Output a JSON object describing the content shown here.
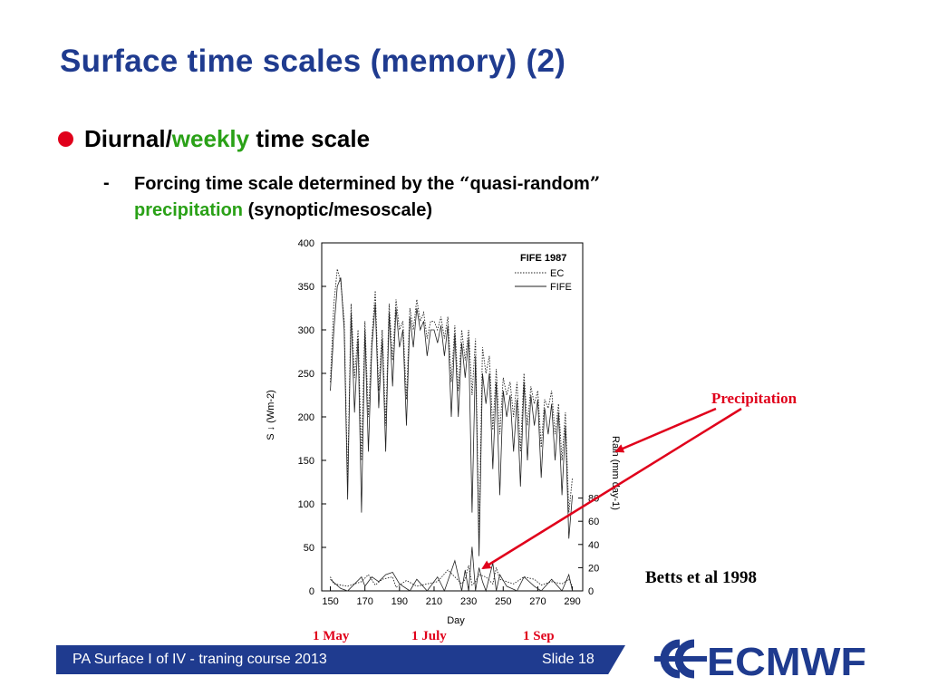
{
  "slide": {
    "title": "Surface time scales (memory) (2)",
    "bullet": {
      "part1": "Diurnal/",
      "part2": "weekly",
      "part3": " time scale"
    },
    "sub": {
      "dash": "-",
      "line1_prefix": "Forcing time scale determined by the ",
      "open_quote": "“",
      "line1_quoted": "quasi-random",
      "close_quote": "”",
      "line2_green": "precipitation",
      "line2_rest": " (synoptic/mesoscale)"
    },
    "annotation_label": "Precipitation",
    "citation": "Betts et al 1998",
    "months": [
      "1 May",
      "1 July",
      "1 Sep"
    ],
    "footer": {
      "left": "PA Surface I of IV - traning course 2013",
      "right": "Slide 18"
    },
    "logo_text": "ECMWF",
    "colors": {
      "title_blue": "#1f3b8f",
      "accent_red": "#e0001b",
      "accent_green": "#2aa117"
    }
  },
  "chart_data": {
    "type": "line",
    "title": "FIFE 1987",
    "xlabel": "Day",
    "ylabel": "S ↓ (Wm-2)",
    "y2label": "Rain (mm day-1)",
    "xlim": [
      145,
      296
    ],
    "ylim": [
      0,
      400
    ],
    "y2lim": [
      0,
      300
    ],
    "xticks": [
      150,
      170,
      190,
      210,
      230,
      250,
      270,
      290
    ],
    "yticks": [
      0,
      50,
      100,
      150,
      200,
      250,
      300,
      350,
      400
    ],
    "y2ticks": [
      0,
      20,
      40,
      60,
      80
    ],
    "grid": false,
    "legend": [
      "EC",
      "FIFE"
    ],
    "legend_position": "top-right",
    "series": [
      {
        "name": "EC",
        "axis": "left",
        "style": "dotted",
        "x": [
          150,
          152,
          154,
          156,
          158,
          160,
          162,
          164,
          166,
          168,
          170,
          172,
          174,
          176,
          178,
          180,
          182,
          184,
          186,
          188,
          190,
          192,
          194,
          196,
          198,
          200,
          202,
          204,
          206,
          208,
          210,
          212,
          214,
          216,
          218,
          220,
          222,
          224,
          226,
          228,
          230,
          232,
          234,
          236,
          238,
          240,
          242,
          244,
          246,
          248,
          250,
          252,
          254,
          256,
          258,
          260,
          262,
          264,
          266,
          268,
          270,
          272,
          274,
          276,
          278,
          280,
          282,
          284,
          286,
          288,
          290
        ],
        "values": [
          240,
          330,
          370,
          355,
          310,
          125,
          330,
          245,
          300,
          150,
          310,
          200,
          290,
          345,
          230,
          300,
          190,
          330,
          265,
          335,
          300,
          310,
          220,
          325,
          300,
          335,
          310,
          320,
          290,
          310,
          310,
          300,
          315,
          290,
          315,
          240,
          305,
          230,
          300,
          265,
          300,
          225,
          290,
          60,
          280,
          250,
          270,
          185,
          255,
          180,
          245,
          225,
          240,
          200,
          240,
          160,
          250,
          190,
          235,
          215,
          230,
          165,
          220,
          210,
          230,
          180,
          215,
          150,
          205,
          90,
          130
        ]
      },
      {
        "name": "FIFE",
        "axis": "left",
        "style": "solid",
        "x": [
          150,
          152,
          154,
          156,
          158,
          160,
          162,
          164,
          166,
          168,
          170,
          172,
          174,
          176,
          178,
          180,
          182,
          184,
          186,
          188,
          190,
          192,
          194,
          196,
          198,
          200,
          202,
          204,
          206,
          208,
          210,
          212,
          214,
          216,
          218,
          220,
          222,
          224,
          226,
          228,
          230,
          232,
          234,
          236,
          238,
          240,
          242,
          244,
          246,
          248,
          250,
          252,
          254,
          256,
          258,
          260,
          262,
          264,
          266,
          268,
          270,
          272,
          274,
          276,
          278,
          280,
          282,
          284,
          286,
          288,
          290
        ],
        "values": [
          230,
          300,
          350,
          360,
          300,
          105,
          320,
          205,
          290,
          90,
          300,
          160,
          280,
          330,
          210,
          290,
          160,
          320,
          235,
          325,
          280,
          300,
          190,
          315,
          280,
          325,
          300,
          310,
          270,
          300,
          300,
          285,
          305,
          270,
          305,
          200,
          295,
          200,
          285,
          245,
          290,
          90,
          270,
          40,
          250,
          215,
          250,
          140,
          240,
          110,
          230,
          200,
          225,
          160,
          220,
          120,
          240,
          150,
          225,
          190,
          220,
          130,
          210,
          180,
          215,
          150,
          205,
          110,
          190,
          60,
          110
        ]
      },
      {
        "name": "Rain EC",
        "axis": "right",
        "style": "dotted",
        "x": [
          150,
          152,
          160,
          168,
          172,
          176,
          180,
          186,
          188,
          194,
          200,
          206,
          212,
          218,
          222,
          226,
          228,
          230,
          232,
          234,
          236,
          240,
          244,
          246,
          248,
          252,
          256,
          262,
          268,
          272,
          278,
          284,
          288,
          290
        ],
        "values": [
          12,
          6,
          4,
          8,
          14,
          5,
          10,
          12,
          3,
          9,
          4,
          6,
          8,
          18,
          12,
          6,
          10,
          22,
          5,
          8,
          14,
          12,
          6,
          20,
          10,
          8,
          6,
          12,
          10,
          5,
          8,
          6,
          10,
          4
        ]
      },
      {
        "name": "Rain FIFE",
        "axis": "right",
        "style": "solid",
        "x": [
          150,
          156,
          160,
          168,
          170,
          174,
          178,
          182,
          186,
          190,
          196,
          200,
          206,
          212,
          216,
          222,
          226,
          228,
          230,
          232,
          234,
          236,
          238,
          240,
          244,
          246,
          248,
          252,
          258,
          262,
          268,
          272,
          278,
          284,
          288,
          290
        ],
        "values": [
          10,
          2,
          0,
          12,
          4,
          12,
          8,
          14,
          16,
          6,
          0,
          10,
          0,
          12,
          0,
          26,
          0,
          18,
          0,
          38,
          0,
          20,
          8,
          0,
          24,
          0,
          14,
          4,
          0,
          12,
          4,
          0,
          10,
          0,
          14,
          0
        ]
      }
    ]
  }
}
